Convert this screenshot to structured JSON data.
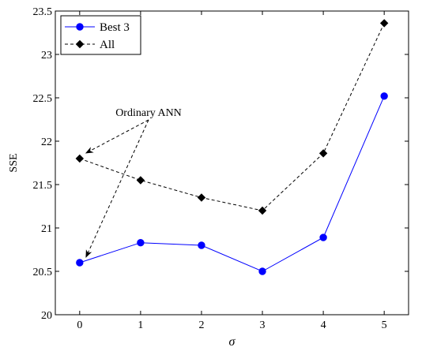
{
  "chart_data": {
    "type": "line",
    "x": [
      0,
      1,
      2,
      3,
      4,
      5
    ],
    "xticks": [
      "0",
      "1",
      "2",
      "3",
      "4",
      "5"
    ],
    "yticks": [
      "20",
      "20.5",
      "21",
      "21.5",
      "22",
      "22.5",
      "23",
      "23.5"
    ],
    "xlim": [
      -0.4,
      5.4
    ],
    "ylim": [
      20,
      23.5
    ],
    "xlabel": "σ",
    "ylabel": "SSE",
    "title": "",
    "legend_position": "top-left",
    "grid": false,
    "series": [
      {
        "name": "Best 3",
        "values": [
          20.6,
          20.83,
          20.8,
          20.5,
          20.89,
          22.52
        ],
        "color": "#0000ff",
        "line_style": "solid",
        "marker": "circle"
      },
      {
        "name": "All",
        "values": [
          21.8,
          21.55,
          21.35,
          21.2,
          21.86,
          23.36
        ],
        "color": "#000000",
        "line_style": "dashed",
        "marker": "diamond"
      }
    ],
    "annotations": [
      {
        "text": "Ordinary ANN",
        "targets": [
          {
            "series": "All",
            "x": 0
          },
          {
            "series": "Best 3",
            "x": 0
          }
        ]
      }
    ]
  }
}
